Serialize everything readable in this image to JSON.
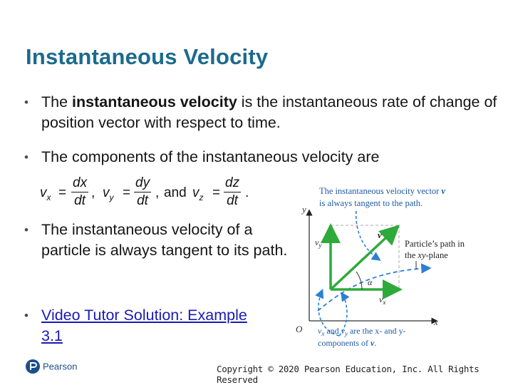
{
  "slide": {
    "title": "Instantaneous Velocity"
  },
  "bullets": {
    "b1_pre": "The ",
    "b1_bold": "instantaneous velocity",
    "b1_post": " is the instantaneous rate of change of position vector with respect to time.",
    "b2": "The components of the instantaneous velocity are",
    "b3": "The instantaneous velocity of a particle is always tangent to its path.",
    "b4_link": "Video Tutor Solution: Example 3.1"
  },
  "equation": {
    "vx": "v",
    "vx_sub": "x",
    "vx_num": "dx",
    "vx_den": "dt",
    "vy": "v",
    "vy_sub": "y",
    "vy_num": "dy",
    "vy_den": "dt",
    "and": "and",
    "vz": "v",
    "vz_sub": "z",
    "vz_num": "dz",
    "vz_den": "dt",
    "eq_sign": "=",
    "comma": ",",
    "period": "."
  },
  "diagram": {
    "caption_top_line1": "The instantaneous velocity vector",
    "caption_top_vec": "v",
    "caption_top_line2": "is always tangent to the path.",
    "path_label_line1": "Particle’s path in",
    "path_label_line2_pre": "the ",
    "path_label_xy": "xy",
    "path_label_line2_post": "-plane",
    "axis_y": "y",
    "axis_x": "x",
    "origin": "O",
    "vy_label": "v",
    "vy_label_sub": "y",
    "vx_label": "v",
    "vx_label_sub": "x",
    "v_label": "v",
    "alpha": "α",
    "caption_bottom_line1": "v",
    "caption_bottom_line1_sub": "x",
    "caption_bottom_line1_mid": " and ",
    "caption_bottom_line1_v2": "v",
    "caption_bottom_line1_sub2": "y",
    "caption_bottom_line1_post": " are the x- and y-",
    "caption_bottom_line2": "components of ",
    "caption_bottom_vec": "v",
    "caption_bottom_end": "."
  },
  "footer": {
    "logo_text": "Pearson",
    "copyright": "Copyright © 2020 Pearson Education, Inc. All Rights Reserved"
  },
  "colors": {
    "title": "#1b6b8c",
    "link": "#1a1ab5",
    "vector_green": "#2eaa3a",
    "path_blue": "#2d7fd3",
    "caption_blue": "#1e5aa8",
    "logo_blue": "#1c4f8a"
  }
}
